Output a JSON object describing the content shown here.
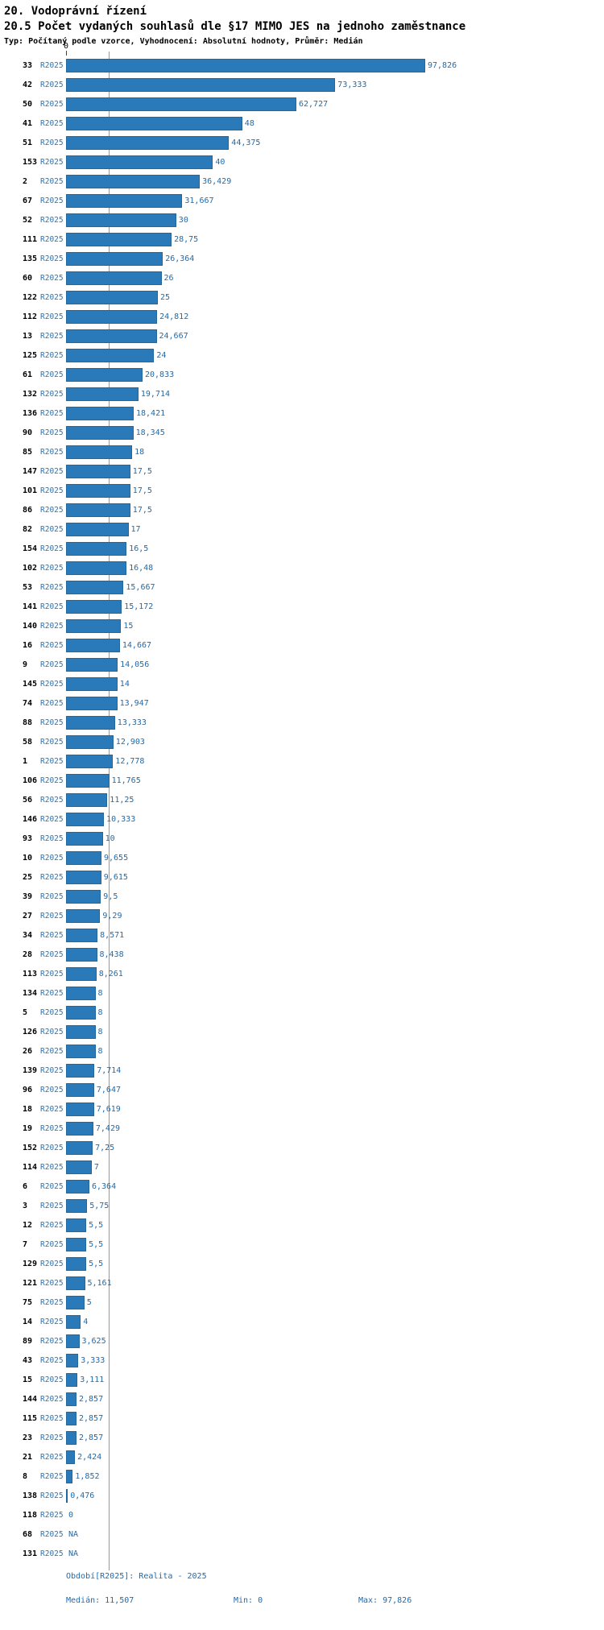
{
  "header": {
    "title": "20. Vodoprávní řízení",
    "subtitle": "20.5 Počet vydaných souhlasů dle §17 MIMO JES na jednoho zaměstnance",
    "meta": "Typ: Počítaný podle vzorce, Vyhodnocení: Absolutní hodnoty, Průměr: Medián"
  },
  "axis": {
    "zero_label": "0"
  },
  "chart_data": {
    "type": "bar",
    "orientation": "horizontal",
    "title": "20.5 Počet vydaných souhlasů dle §17 MIMO JES na jednoho zaměstnance",
    "series_label": "R2025",
    "xlim": [
      0,
      97.826
    ],
    "median": 11.507,
    "min": 0,
    "max": 97.826,
    "grid": false,
    "legend": "none",
    "categories": [
      "33",
      "42",
      "50",
      "41",
      "51",
      "153",
      "2",
      "67",
      "52",
      "111",
      "135",
      "60",
      "122",
      "112",
      "13",
      "125",
      "61",
      "132",
      "136",
      "90",
      "85",
      "147",
      "101",
      "86",
      "82",
      "154",
      "102",
      "53",
      "141",
      "140",
      "16",
      "9",
      "145",
      "74",
      "88",
      "58",
      "1",
      "106",
      "56",
      "146",
      "93",
      "10",
      "25",
      "39",
      "27",
      "34",
      "28",
      "113",
      "134",
      "5",
      "126",
      "26",
      "139",
      "96",
      "18",
      "19",
      "152",
      "114",
      "6",
      "3",
      "12",
      "7",
      "129",
      "121",
      "75",
      "14",
      "89",
      "43",
      "15",
      "144",
      "115",
      "23",
      "21",
      "8",
      "138",
      "118",
      "68",
      "131"
    ],
    "values": [
      97.826,
      73.333,
      62.727,
      48,
      44.375,
      40,
      36.429,
      31.667,
      30,
      28.75,
      26.364,
      26,
      25,
      24.812,
      24.667,
      24,
      20.833,
      19.714,
      18.421,
      18.345,
      18,
      17.5,
      17.5,
      17.5,
      17,
      16.5,
      16.48,
      15.667,
      15.172,
      15,
      14.667,
      14.056,
      14,
      13.947,
      13.333,
      12.903,
      12.778,
      11.765,
      11.25,
      10.333,
      10,
      9.655,
      9.615,
      9.5,
      9.29,
      8.571,
      8.438,
      8.261,
      8,
      8,
      8,
      8,
      7.714,
      7.647,
      7.619,
      7.429,
      7.25,
      7,
      6.364,
      5.75,
      5.5,
      5.5,
      5.5,
      5.161,
      5,
      4,
      3.625,
      3.333,
      3.111,
      2.857,
      2.857,
      2.857,
      2.424,
      1.852,
      0.476,
      0,
      null,
      null
    ],
    "value_labels": [
      "97,826",
      "73,333",
      "62,727",
      "48",
      "44,375",
      "40",
      "36,429",
      "31,667",
      "30",
      "28,75",
      "26,364",
      "26",
      "25",
      "24,812",
      "24,667",
      "24",
      "20,833",
      "19,714",
      "18,421",
      "18,345",
      "18",
      "17,5",
      "17,5",
      "17,5",
      "17",
      "16,5",
      "16,48",
      "15,667",
      "15,172",
      "15",
      "14,667",
      "14,056",
      "14",
      "13,947",
      "13,333",
      "12,903",
      "12,778",
      "11,765",
      "11,25",
      "10,333",
      "10",
      "9,655",
      "9,615",
      "9,5",
      "9,29",
      "8,571",
      "8,438",
      "8,261",
      "8",
      "8",
      "8",
      "8",
      "7,714",
      "7,647",
      "7,619",
      "7,429",
      "7,25",
      "7",
      "6,364",
      "5,75",
      "5,5",
      "5,5",
      "5,5",
      "5,161",
      "5",
      "4",
      "3,625",
      "3,333",
      "3,111",
      "2,857",
      "2,857",
      "2,857",
      "2,424",
      "1,852",
      "0,476",
      "0",
      "NA",
      "NA"
    ]
  },
  "footer": {
    "period": "Období[R2025]: Realita - 2025",
    "median": "Medián: 11,507",
    "min": "Min: 0",
    "max": "Max: 97,826"
  },
  "colors": {
    "bar": "#2a7ab9",
    "value_label": "#1c6bb0",
    "series_label": "#2a72b5",
    "median_line": "#6aa5d8",
    "text": "#000000"
  }
}
